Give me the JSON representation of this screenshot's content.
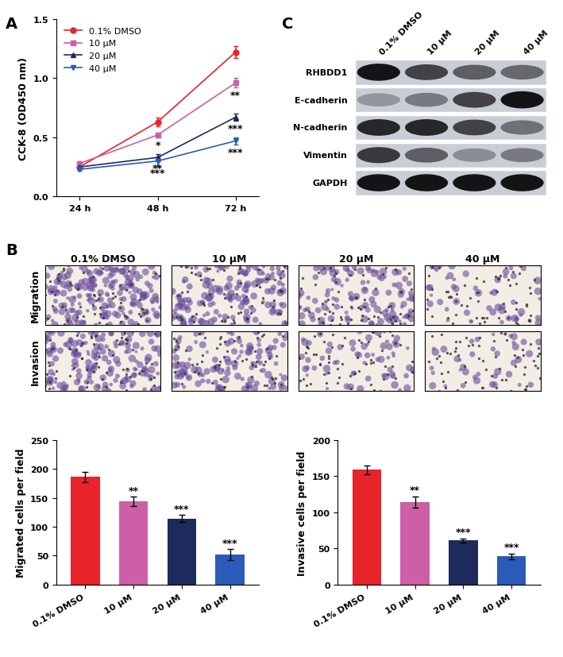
{
  "panel_labels": [
    "A",
    "B",
    "C"
  ],
  "chart_data": [
    {
      "type": "line",
      "ylabel": "CCK-8 (OD450 nm)",
      "categories": [
        "24 h",
        "48 h",
        "72 h"
      ],
      "ylim": [
        0,
        1.5
      ],
      "yticks": [
        {
          "value": 0,
          "label": "0.0"
        },
        {
          "value": 0.5,
          "label": "0.5"
        },
        {
          "value": 1.0,
          "label": "1.0"
        },
        {
          "value": 1.5,
          "label": "1.5"
        }
      ],
      "legend": "upper left",
      "series": [
        {
          "name": "0.1% DMSO",
          "color": "#e8232a",
          "marker": "circle",
          "values": [
            0.25,
            0.63,
            1.22
          ],
          "error": [
            0.02,
            0.04,
            0.05
          ],
          "significance": [
            null,
            null,
            null
          ]
        },
        {
          "name": "10 µM",
          "color": "#cc5fa5",
          "marker": "square",
          "values": [
            0.28,
            0.52,
            0.96
          ],
          "error": [
            0.02,
            0.02,
            0.04
          ],
          "significance": [
            null,
            "*",
            "**"
          ]
        },
        {
          "name": "20 µM",
          "color": "#1f2a5c",
          "marker": "triangle_up",
          "values": [
            0.25,
            0.33,
            0.67
          ],
          "error": [
            0.01,
            0.03,
            0.03
          ],
          "significance": [
            null,
            "**",
            "***"
          ]
        },
        {
          "name": "40 µM",
          "color": "#2a5bb8",
          "marker": "triangle_down",
          "values": [
            0.23,
            0.3,
            0.47
          ],
          "error": [
            0.01,
            0.04,
            0.03
          ],
          "significance": [
            null,
            "***",
            "***"
          ]
        }
      ]
    },
    {
      "type": "bar",
      "ylabel": "Migrated cells per field",
      "categories": [
        "0.1% DMSO",
        "10 µM",
        "20 µM",
        "40 µM"
      ],
      "values": [
        186,
        144,
        114,
        52
      ],
      "error": [
        9,
        8,
        6,
        9
      ],
      "significance": [
        null,
        "**",
        "***",
        "***"
      ],
      "colors": [
        "#e8232a",
        "#cc5fa5",
        "#1f2a5c",
        "#2a5bb8"
      ],
      "ylim": [
        0,
        250
      ],
      "yticks": [
        0,
        50,
        100,
        150,
        200,
        250
      ]
    },
    {
      "type": "bar",
      "ylabel": "Invasive cells per field",
      "categories": [
        "0.1% DMSO",
        "10 µM",
        "20 µM",
        "40 µM"
      ],
      "values": [
        159,
        114,
        61,
        39
      ],
      "error": [
        6,
        8,
        3,
        4
      ],
      "significance": [
        null,
        "**",
        "***",
        "***"
      ],
      "colors": [
        "#e8232a",
        "#cc5fa5",
        "#1f2a5c",
        "#2a5bb8"
      ],
      "ylim": [
        0,
        200
      ],
      "yticks": [
        0,
        50,
        100,
        150,
        200
      ]
    }
  ],
  "micrographs": {
    "columns": [
      "0.1% DMSO",
      "10 µM",
      "20 µM",
      "40 µM"
    ],
    "rows": [
      "Migration",
      "Invasion"
    ]
  },
  "western_blot": {
    "lanes": [
      "0.1% DMSO",
      "10 µM",
      "20 µM",
      "40 µM"
    ],
    "proteins": [
      {
        "name": "RHBDD1",
        "band_intensity": [
          1.0,
          0.75,
          0.6,
          0.55
        ]
      },
      {
        "name": "E-cadherin",
        "band_intensity": [
          0.3,
          0.45,
          0.75,
          1.0
        ]
      },
      {
        "name": "N-cadherin",
        "band_intensity": [
          0.9,
          0.9,
          0.75,
          0.5
        ]
      },
      {
        "name": "Vimentin",
        "band_intensity": [
          0.8,
          0.6,
          0.35,
          0.45
        ]
      },
      {
        "name": "GAPDH",
        "band_intensity": [
          1.0,
          1.0,
          1.0,
          1.0
        ]
      }
    ]
  }
}
